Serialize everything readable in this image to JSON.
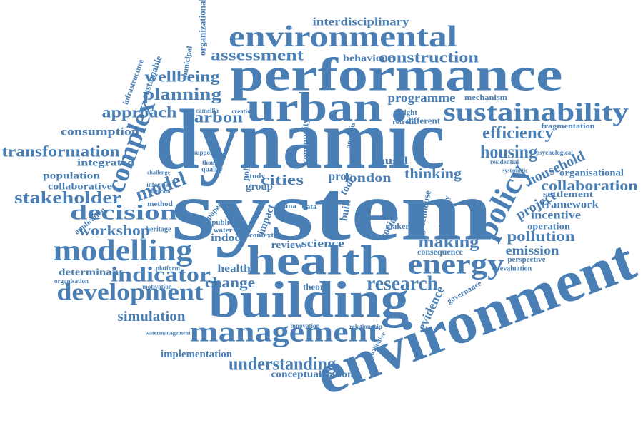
{
  "words": [
    "dynamic",
    "system",
    "environment",
    "performance",
    "urban",
    "building",
    "health",
    "environmental",
    "sustainability",
    "management",
    "modelling",
    "development",
    "energy",
    "research",
    "policy",
    "complex",
    "decision",
    "indicator",
    "model",
    "stakeholder",
    "transformation",
    "understanding",
    "assessment",
    "construction",
    "planning",
    "wellbeing",
    "approach",
    "carbon",
    "housing",
    "efficiency",
    "household",
    "collaboration",
    "project",
    "framework",
    "incentive",
    "pollution",
    "emission",
    "making",
    "workshop",
    "simulation",
    "implementation",
    "conceptualization",
    "interdisciplinary",
    "programme",
    "thinking",
    "cities",
    "london",
    "consumption",
    "integrated",
    "population",
    "collaborative",
    "organisational",
    "settlement",
    "operation",
    "evidence",
    "change",
    "science",
    "review",
    "healthy",
    "indoor",
    "determinant",
    "organizational",
    "sustainable",
    "infrastructure",
    "municipal",
    "behaviour",
    "mechanism",
    "fragmentation",
    "greenhouse",
    "philosophy",
    "causal",
    "social",
    "community",
    "motivation",
    "watermanagement",
    "innovation",
    "relationship",
    "qualitative",
    "governance",
    "perspective",
    "evaluation",
    "consequence",
    "theory",
    "platform",
    "organisation",
    "quality",
    "method",
    "heritage",
    "application",
    "tool",
    "china",
    "group",
    "study",
    "policies",
    "impact",
    "data",
    "built",
    "proc",
    "analysis",
    "different",
    "insight",
    "retrofit",
    "creation",
    "camellia",
    "residential",
    "systematic",
    "psychological",
    "context",
    "public",
    "water",
    "paper",
    "maker",
    "challenge",
    "informal",
    "diagram",
    "thought",
    "support"
  ]
}
